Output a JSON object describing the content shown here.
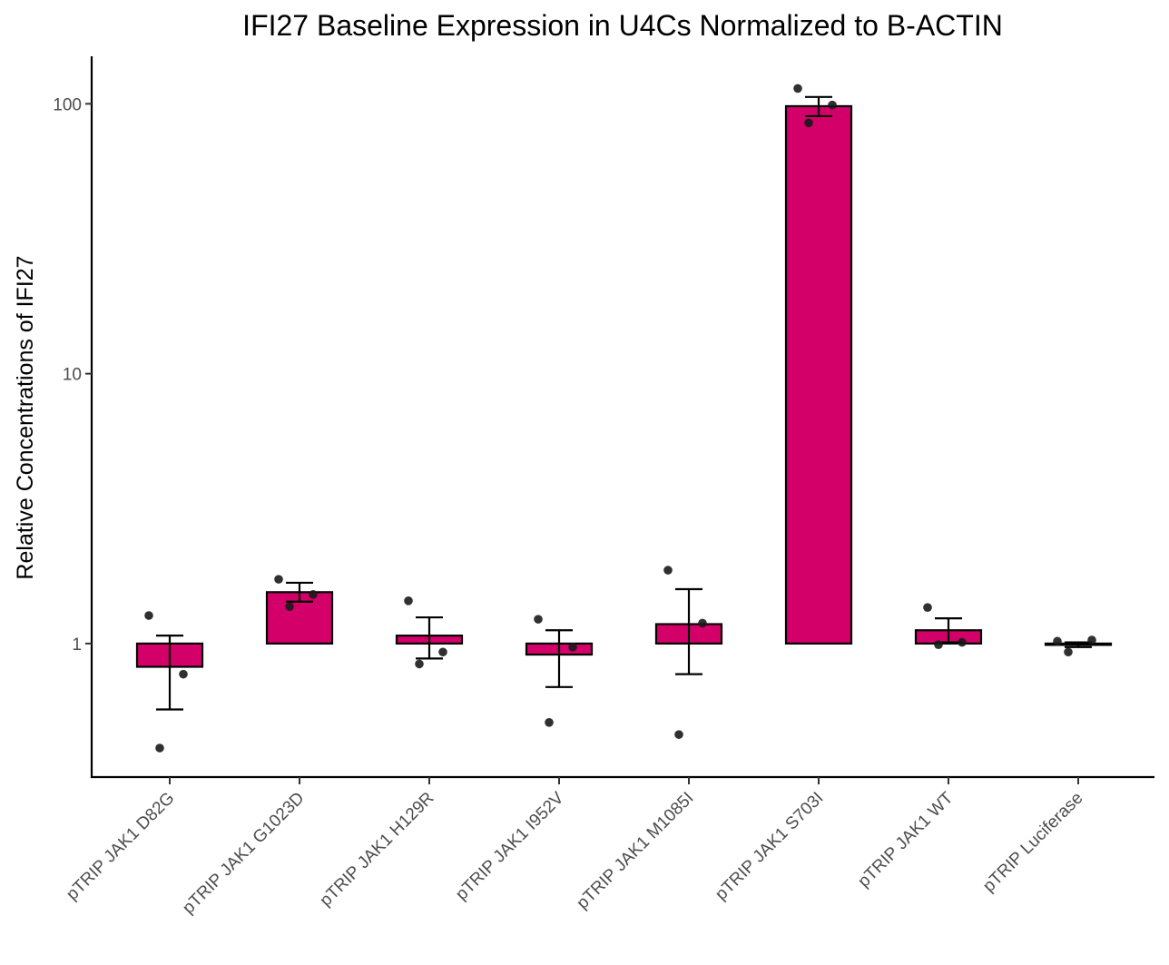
{
  "chart_data": {
    "type": "bar",
    "title": "IFI27 Baseline Expression in U4Cs Normalized to B-ACTIN",
    "xlabel": "",
    "ylabel": "Relative Concentrations of IFI27",
    "y_scale": "log10",
    "bar_baseline": 1,
    "ylim": [
      0.32,
      150
    ],
    "y_ticks": [
      1,
      10,
      100
    ],
    "y_tick_labels": [
      "1",
      "10",
      "100"
    ],
    "grid": false,
    "legend": "none",
    "bar_color": "#d4006a",
    "bar_outline_color": "#000000",
    "point_color": "#1a1a1a",
    "categories": [
      "pTRIP JAK1 D82G",
      "pTRIP JAK1 G1023D",
      "pTRIP JAK1 H129R",
      "pTRIP JAK1 I952V",
      "pTRIP JAK1 M1085I",
      "pTRIP JAK1 S703I",
      "pTRIP JAK1 WT",
      "pTRIP Luciferase"
    ],
    "values": [
      0.82,
      1.55,
      1.07,
      0.91,
      1.18,
      98,
      1.12,
      1.0
    ],
    "error_bars": [
      [
        0.57,
        1.07
      ],
      [
        1.43,
        1.68
      ],
      [
        0.88,
        1.25
      ],
      [
        0.69,
        1.12
      ],
      [
        0.77,
        1.59
      ],
      [
        90,
        106
      ],
      [
        1.01,
        1.24
      ],
      [
        0.97,
        1.01
      ]
    ],
    "points": [
      [
        1.27,
        0.77,
        0.41
      ],
      [
        1.73,
        1.52,
        1.37
      ],
      [
        1.44,
        0.93,
        0.84
      ],
      [
        1.23,
        0.97,
        0.51
      ],
      [
        1.87,
        1.19,
        0.46
      ],
      [
        114,
        99,
        85
      ],
      [
        1.36,
        1.01,
        0.99
      ],
      [
        1.02,
        1.03,
        0.93
      ]
    ]
  }
}
